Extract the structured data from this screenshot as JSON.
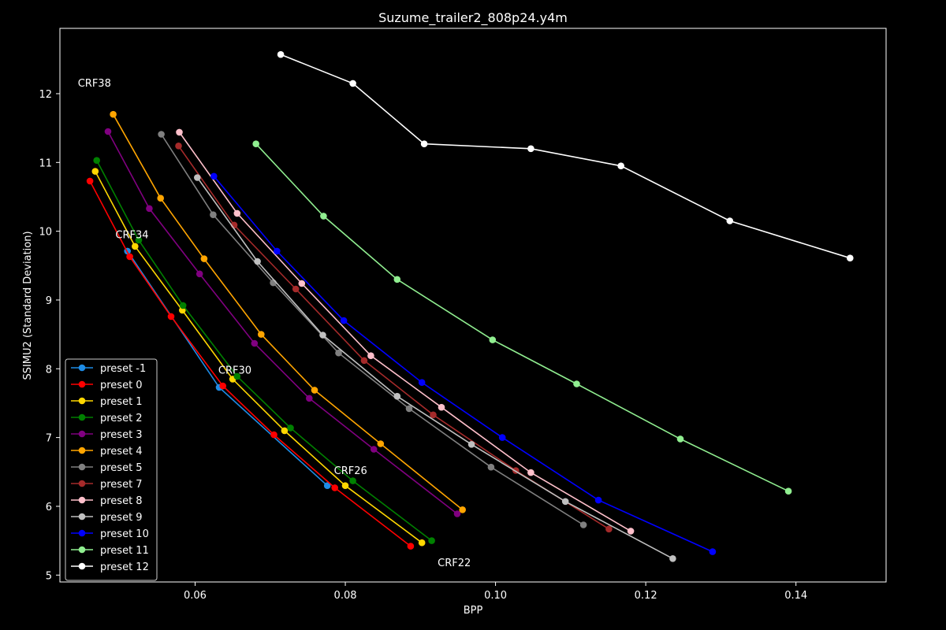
{
  "chart_data": {
    "type": "line",
    "title": "Suzume_trailer2_808p24.y4m",
    "xlabel": "BPP",
    "ylabel": "SSIMU2 (Standard Deviation)",
    "xlim": [
      0.042,
      0.152
    ],
    "ylim": [
      4.9,
      12.95
    ],
    "xticks": [
      0.06,
      0.08,
      0.1,
      0.12,
      0.14
    ],
    "xtick_labels": [
      "0.06",
      "0.08",
      "0.10",
      "0.12",
      "0.14"
    ],
    "yticks": [
      5,
      6,
      7,
      8,
      9,
      10,
      11,
      12
    ],
    "ytick_labels": [
      "5",
      "6",
      "7",
      "8",
      "9",
      "10",
      "11",
      "12"
    ],
    "grid": false,
    "legend_position": "lower-left",
    "annotations": [
      {
        "text": "CRF38",
        "x": 0.0466,
        "y": 12.1
      },
      {
        "text": "CRF34",
        "x": 0.0516,
        "y": 9.9
      },
      {
        "text": "CRF30",
        "x": 0.0653,
        "y": 7.93
      },
      {
        "text": "CRF26",
        "x": 0.0807,
        "y": 6.47
      },
      {
        "text": "CRF22",
        "x": 0.0945,
        "y": 5.13
      }
    ],
    "series": [
      {
        "name": "preset -1",
        "color": "#1e8ce6",
        "x": [
          0.051,
          0.0632,
          0.0776
        ],
        "y": [
          9.71,
          7.73,
          6.3
        ]
      },
      {
        "name": "preset 0",
        "color": "#ff0000",
        "x": [
          0.046,
          0.0513,
          0.0568,
          0.0637,
          0.0705,
          0.0786,
          0.0887
        ],
        "y": [
          10.73,
          9.63,
          8.76,
          7.75,
          7.04,
          6.27,
          5.42
        ]
      },
      {
        "name": "preset 1",
        "color": "#ffd700",
        "x": [
          0.0467,
          0.052,
          0.0583,
          0.065,
          0.0719,
          0.08,
          0.0902
        ],
        "y": [
          10.87,
          9.78,
          8.85,
          7.85,
          7.1,
          6.3,
          5.47
        ]
      },
      {
        "name": "preset 2",
        "color": "#008000",
        "x": [
          0.0469,
          0.0525,
          0.0584,
          0.0656,
          0.0727,
          0.081,
          0.0915
        ],
        "y": [
          11.03,
          9.87,
          8.92,
          7.89,
          7.14,
          6.37,
          5.5
        ]
      },
      {
        "name": "preset 3",
        "color": "#800080",
        "x": [
          0.0484,
          0.0539,
          0.0606,
          0.0679,
          0.0752,
          0.0838,
          0.0949
        ],
        "y": [
          11.45,
          10.33,
          9.38,
          8.37,
          7.57,
          6.83,
          5.89
        ]
      },
      {
        "name": "preset 4",
        "color": "#ffa500",
        "x": [
          0.0491,
          0.0554,
          0.0612,
          0.0688,
          0.0759,
          0.0847,
          0.0956
        ],
        "y": [
          11.7,
          10.48,
          9.6,
          8.5,
          7.69,
          6.91,
          5.95
        ]
      },
      {
        "name": "preset 5",
        "color": "#808080",
        "x": [
          0.0555,
          0.0624,
          0.0704,
          0.0791,
          0.0885,
          0.0994,
          0.1117
        ],
        "y": [
          11.41,
          10.24,
          9.25,
          8.23,
          7.42,
          6.57,
          5.73
        ]
      },
      {
        "name": "preset 7",
        "color": "#a52a2a",
        "x": [
          0.0578,
          0.0652,
          0.0734,
          0.0825,
          0.0917,
          0.1027,
          0.1151
        ],
        "y": [
          11.24,
          10.09,
          9.16,
          8.12,
          7.33,
          6.52,
          5.67
        ]
      },
      {
        "name": "preset 8",
        "color": "#ffc0cb",
        "x": [
          0.0579,
          0.0656,
          0.0742,
          0.0834,
          0.0928,
          0.1047,
          0.118
        ],
        "y": [
          11.44,
          10.26,
          9.24,
          8.19,
          7.44,
          6.49,
          5.64
        ]
      },
      {
        "name": "preset 9",
        "color": "#c0c0c0",
        "x": [
          0.0603,
          0.0683,
          0.077,
          0.0869,
          0.0968,
          0.1093,
          0.1236
        ],
        "y": [
          10.78,
          9.56,
          8.49,
          7.6,
          6.9,
          6.07,
          5.24
        ]
      },
      {
        "name": "preset 10",
        "color": "#0000ff",
        "x": [
          0.0625,
          0.0709,
          0.0798,
          0.0902,
          0.1009,
          0.1137,
          0.1289
        ],
        "y": [
          10.8,
          9.71,
          8.7,
          7.8,
          7.0,
          6.09,
          5.34
        ]
      },
      {
        "name": "preset 11",
        "color": "#90ee90",
        "x": [
          0.0681,
          0.0771,
          0.0869,
          0.0996,
          0.1108,
          0.1246,
          0.139
        ],
        "y": [
          11.27,
          10.22,
          9.3,
          8.42,
          7.78,
          6.98,
          6.22
        ]
      },
      {
        "name": "preset 12",
        "color": "#ffffff",
        "x": [
          0.0714,
          0.081,
          0.0905,
          0.1047,
          0.1167,
          0.1312,
          0.1472
        ],
        "y": [
          12.57,
          12.15,
          11.27,
          11.2,
          10.95,
          10.15,
          9.61
        ]
      }
    ]
  }
}
